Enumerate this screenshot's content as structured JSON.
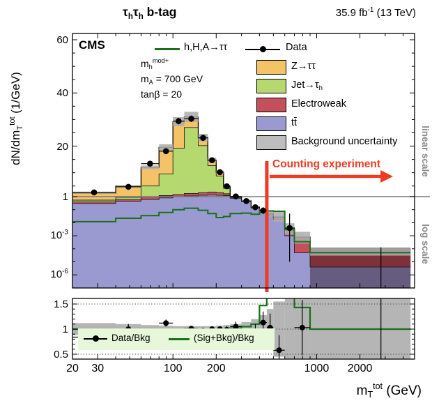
{
  "header": {
    "cms": "CMS",
    "category": [
      {
        "t": "τ"
      },
      {
        "t": "h",
        "s": "sub"
      },
      {
        "t": "τ"
      },
      {
        "t": "h",
        "s": "sub"
      },
      {
        "t": " b-tag"
      }
    ],
    "lumi": [
      {
        "t": "35.9 fb"
      },
      {
        "t": "-1",
        "s": "sup"
      },
      {
        "t": " (13 TeV)"
      }
    ]
  },
  "axes": {
    "ylabel": [
      {
        "t": "dN/dm"
      },
      {
        "t": "T",
        "s": "sub"
      },
      {
        "t": "tot",
        "s": "sup"
      },
      {
        "t": " (1/GeV)"
      }
    ],
    "xlabel": [
      {
        "t": "m"
      },
      {
        "t": "T",
        "s": "sub"
      },
      {
        "t": "tot",
        "s": "sup"
      },
      {
        "t": " (GeV)"
      }
    ]
  },
  "legend": {
    "signal": "h,H,A→ττ",
    "data": "Data",
    "z": "Z→ττ",
    "jet": [
      {
        "t": "Jet→τ"
      },
      {
        "t": "h",
        "s": "sub"
      }
    ],
    "ewk": "Electroweak",
    "tt": "tt̄",
    "unc": "Background uncertainty",
    "params_mh": [
      {
        "t": "m"
      },
      {
        "t": "h",
        "s": "sub"
      },
      {
        "t": "mod+",
        "s": "sup"
      }
    ],
    "params_ma": [
      {
        "t": "m"
      },
      {
        "t": "A",
        "s": "sub"
      },
      {
        "t": " = 700 GeV"
      }
    ],
    "params_tanb": "tanβ = 20"
  },
  "annotations": {
    "counting": "Counting experiment",
    "linear": "linear scale",
    "log": "log scale"
  },
  "ratio_legend": {
    "data": "Data/Bkg",
    "sig": "(Sig+Bkg)/Bkg"
  },
  "colors": {
    "z": "#f3c368",
    "jet": "#b5d96f",
    "ewk": "#c4505c",
    "tt": "#9a9ad1",
    "uncertainty": "#adadad",
    "signal": "#1b6e1b",
    "data": "#000000",
    "counting_red": "#f03b24",
    "boundary_gray": "#787878",
    "ratio_legend_bg": "#e7f7da"
  },
  "chart_data": {
    "type": "stacked-histogram-with-ratio",
    "title": "τhτh b-tag",
    "xlabel": "mT^tot (GeV)",
    "ylabel": "dN/dmT^tot (1/GeV)",
    "x_scale": "log",
    "x_range": [
      20,
      4800
    ],
    "y_main": {
      "linear_max": 60,
      "boundary": 1,
      "log_min": 1e-07
    },
    "x_edges": [
      20,
      40,
      60,
      80,
      100,
      120,
      150,
      175,
      200,
      225,
      250,
      300,
      350,
      400,
      450,
      500,
      600,
      700,
      900,
      4500
    ],
    "series": [
      {
        "key": "tt",
        "label": "tt̄",
        "color": "#9a9ad1",
        "values": [
          0.3,
          0.45,
          0.6,
          0.8,
          1.0,
          1.3,
          1.5,
          1.6,
          1.5,
          1.4,
          0.75,
          0.4,
          0.125,
          0.065,
          0.036,
          0.018,
          0.001,
          5e-05,
          4e-06
        ]
      },
      {
        "key": "ewk",
        "label": "Electroweak",
        "color": "#c4505c",
        "values": [
          0.09,
          0.15,
          0.4,
          0.6,
          0.8,
          0.9,
          1.0,
          1.1,
          1.0,
          0.7,
          0.1,
          0.03,
          0.012,
          0.008,
          0.006,
          0.005,
          0.0024,
          0.0007,
          9e-05
        ]
      },
      {
        "key": "jet",
        "label": "Jet→τh",
        "color": "#b5d96f",
        "values": [
          0.15,
          0.3,
          4.0,
          8.1,
          17.4,
          24.8,
          17.7,
          10.0,
          6.2,
          2.0,
          0.1,
          0.02,
          0.008,
          0.005,
          0.003,
          0.002,
          0.0002,
          2e-05,
          4e-06
        ]
      },
      {
        "key": "z",
        "label": "Z→ττ",
        "color": "#f3c368",
        "values": [
          1.76,
          4.1,
          7.0,
          10.0,
          10.0,
          4.0,
          3.0,
          2.0,
          1.5,
          0.8,
          0.1,
          0.03,
          0.015,
          0.008,
          0.005,
          0.003,
          0.0004,
          3e-05,
          3e-06
        ]
      }
    ],
    "dark_overlay_bins": [
      18
    ],
    "uncertainty_lo": [
      2.16,
      4.7,
      11.3,
      18.3,
      27.5,
      29.1,
      21.8,
      13.8,
      9.6,
      4.6,
      0.92,
      0.4,
      0.125,
      0.062,
      0.03,
      0.012,
      0.0012,
      0.00025,
      3e-05
    ],
    "uncertainty_hi": [
      2.44,
      5.3,
      12.7,
      20.7,
      30.9,
      32.9,
      24.6,
      15.6,
      10.8,
      5.2,
      1.18,
      0.56,
      0.2,
      0.115,
      0.08,
      0.07,
      0.009,
      0.002,
      0.00013
    ],
    "signal_values": [
      0.012,
      0.022,
      0.035,
      0.06,
      0.1,
      0.13,
      0.09,
      0.05,
      0.025,
      0.03,
      0.05,
      0.055,
      0.045,
      0.06,
      0.08,
      0.075,
      0.003,
      0.00035,
      5e-05
    ],
    "signal_legend": "h,H,A→ττ  (mh_mod+, mA = 700 GeV, tanβ = 20)",
    "data": {
      "values": [
        2.6,
        4.7,
        13.4,
        18.1,
        29.4,
        30.3,
        23.1,
        14.7,
        10.2,
        4.9,
        1.1,
        0.46,
        0.155,
        0.085,
        null,
        null,
        0.0039,
        null,
        null
      ],
      "err_lo": [
        2.2,
        4.2,
        12.5,
        17.2,
        28.2,
        29.1,
        22.0,
        13.9,
        9.5,
        4.4,
        0.9,
        0.33,
        0.1,
        0.045,
        null,
        null,
        1e-05,
        null,
        null
      ],
      "err_hi": [
        3.0,
        5.3,
        14.3,
        19.1,
        30.6,
        31.5,
        24.2,
        15.6,
        11.0,
        5.4,
        1.3,
        0.62,
        0.23,
        0.16,
        null,
        null,
        0.05,
        null,
        null
      ]
    },
    "wide_bin_errorbar_x": 2800,
    "counting_line_x": 450,
    "counting_arrow_to": 3400,
    "ratio": {
      "range": [
        0.4,
        1.62
      ],
      "gridlines": [
        0.5,
        1.0,
        1.5
      ],
      "band_halfwidth": [
        0.12,
        0.1,
        0.08,
        0.07,
        0.06,
        0.06,
        0.06,
        0.06,
        0.07,
        0.08,
        0.1,
        0.14,
        0.2,
        0.28,
        0.4,
        0.55,
        2,
        2,
        2
      ],
      "signal": [
        1.0,
        1.0,
        1.0,
        1.0,
        1.0,
        1.0,
        1.0,
        1.0,
        1.0,
        1.0,
        1.02,
        1.05,
        1.1,
        1.47,
        9,
        9,
        9,
        1.43,
        1.0
      ],
      "data": [
        0.84,
        1.0,
        0.86,
        1.12,
        0.95,
        1.01,
        0.97,
        1.0,
        1.0,
        0.99,
        1.05,
        0.82,
        0.96,
        1.13,
        1.03,
        0.58,
        null,
        1.03,
        null
      ],
      "err": [
        0.13,
        0.1,
        0.08,
        0.07,
        0.05,
        0.04,
        0.04,
        0.04,
        0.05,
        0.07,
        0.1,
        0.12,
        0.14,
        0.22,
        0.28,
        0.3,
        null,
        0.55,
        null
      ]
    },
    "x_ticks_labeled": [
      [
        20,
        "20"
      ],
      [
        30,
        "30"
      ],
      [
        100,
        "100"
      ],
      [
        200,
        "200"
      ],
      [
        1000,
        "1000"
      ],
      [
        2000,
        "2000"
      ]
    ],
    "x_ticks_minor": [
      40,
      50,
      60,
      70,
      80,
      90,
      300,
      400,
      500,
      600,
      700,
      800,
      900,
      3000,
      4000
    ],
    "y_ticks_linear_labeled": [
      20,
      40,
      60
    ],
    "y_tick_boundary_label": "1",
    "y_ticks_log_labeled_exp": [
      -3,
      -6
    ],
    "y_ticks_log_minor_exp": [
      -1,
      -2,
      -4,
      -5,
      -7
    ],
    "ratio_y_labeled": [
      [
        0.5,
        "0.5"
      ],
      [
        1,
        "1"
      ],
      [
        1.5,
        "1.5"
      ]
    ]
  }
}
